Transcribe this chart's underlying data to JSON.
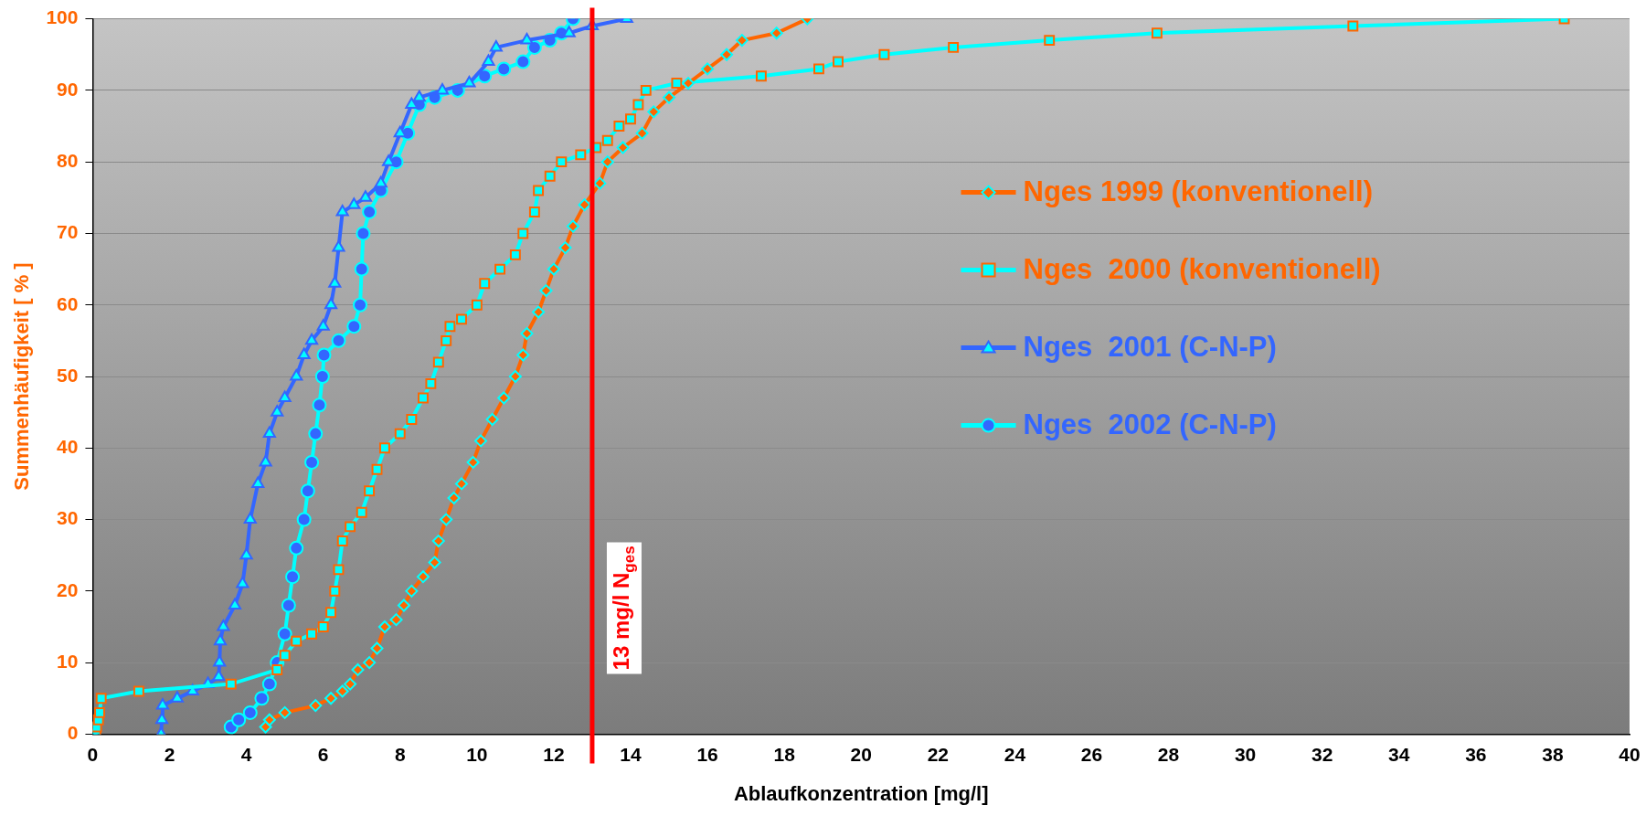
{
  "chart_data": {
    "type": "line",
    "xlabel": "Ablaufkonzentration [mg/l]",
    "ylabel": "Summenhäufigkeit [ % ]",
    "xlim": [
      0,
      40
    ],
    "xticks": [
      0,
      2,
      4,
      6,
      8,
      10,
      12,
      14,
      16,
      18,
      20,
      22,
      24,
      26,
      28,
      30,
      32,
      34,
      36,
      38,
      40
    ],
    "ylim": [
      0,
      100
    ],
    "yticks": [
      0,
      10,
      20,
      30,
      40,
      50,
      60,
      70,
      80,
      90,
      100
    ],
    "grid": "y",
    "legend": "right",
    "line_style": "solid",
    "ref_lines": [
      {
        "axis": "x",
        "value": 13,
        "label": "13 mg/l N$_{ges}$",
        "color": "#ff0000"
      }
    ],
    "series": [
      {
        "name": "Nges 1999 (konventionell)",
        "color": "#ff6600",
        "marker": "diamond",
        "x": [
          4.5,
          4.6,
          5.0,
          5.8,
          6.2,
          6.5,
          6.7,
          6.9,
          7.2,
          7.4,
          7.6,
          7.9,
          8.1,
          8.3,
          8.6,
          8.9,
          9.0,
          9.2,
          9.4,
          9.6,
          9.9,
          10.1,
          10.4,
          10.7,
          11.0,
          11.2,
          11.3,
          11.6,
          11.8,
          12.0,
          12.3,
          12.5,
          12.8,
          13.2,
          13.4,
          13.8,
          14.3,
          14.6,
          15.0,
          15.5,
          16.0,
          16.5,
          16.9,
          17.8,
          18.6
        ],
        "values": [
          1,
          2,
          3,
          4,
          5,
          6,
          7,
          9,
          10,
          12,
          15,
          16,
          18,
          20,
          22,
          24,
          27,
          30,
          33,
          35,
          38,
          41,
          44,
          47,
          50,
          53,
          56,
          59,
          62,
          65,
          68,
          71,
          74,
          77,
          80,
          82,
          84,
          87,
          89,
          91,
          93,
          95,
          97,
          98,
          100
        ]
      },
      {
        "name": "Nges  2000 (konventionell)",
        "color": "#00ffff",
        "marker": "square",
        "x": [
          0.08,
          0.1,
          0.15,
          0.18,
          0.22,
          1.2,
          3.6,
          4.8,
          5.0,
          5.3,
          5.7,
          6.0,
          6.2,
          6.3,
          6.4,
          6.5,
          6.7,
          7.0,
          7.2,
          7.4,
          7.6,
          8.0,
          8.3,
          8.6,
          8.8,
          9.0,
          9.2,
          9.3,
          9.6,
          10.0,
          10.2,
          10.6,
          11.0,
          11.2,
          11.5,
          11.6,
          11.9,
          12.2,
          12.7,
          13.1,
          13.4,
          13.7,
          14.0,
          14.2,
          14.4,
          15.2,
          17.4,
          18.9,
          19.4,
          20.6,
          22.4,
          24.9,
          27.7,
          32.8,
          38.3
        ],
        "values": [
          0,
          1,
          2,
          3,
          5,
          6,
          7,
          9,
          11,
          13,
          14,
          15,
          17,
          20,
          23,
          27,
          29,
          31,
          34,
          37,
          40,
          42,
          44,
          47,
          49,
          52,
          55,
          57,
          58,
          60,
          63,
          65,
          67,
          70,
          73,
          76,
          78,
          80,
          81,
          82,
          83,
          85,
          86,
          88,
          90,
          91,
          92,
          93,
          94,
          95,
          96,
          97,
          98,
          99,
          100
        ]
      },
      {
        "name": "Nges  2001 (C-N-P)",
        "color": "#3366ff",
        "marker": "triangle",
        "x": [
          1.78,
          1.8,
          1.82,
          2.2,
          2.6,
          3.0,
          3.28,
          3.3,
          3.32,
          3.4,
          3.7,
          3.9,
          4.0,
          4.1,
          4.3,
          4.5,
          4.6,
          4.8,
          5.0,
          5.3,
          5.5,
          5.7,
          6.0,
          6.2,
          6.3,
          6.4,
          6.5,
          6.8,
          7.1,
          7.5,
          7.7,
          8.0,
          8.3,
          8.5,
          9.1,
          9.8,
          10.3,
          10.5,
          11.3,
          12.4,
          13.0,
          13.9
        ],
        "values": [
          0,
          2,
          4,
          5,
          6,
          7,
          8,
          10,
          13,
          15,
          18,
          21,
          25,
          30,
          35,
          38,
          42,
          45,
          47,
          50,
          53,
          55,
          57,
          60,
          63,
          68,
          73,
          74,
          75,
          77,
          80,
          84,
          88,
          89,
          90,
          91,
          94,
          96,
          97,
          98,
          99,
          100
        ]
      },
      {
        "name": "Nges  2002 (C-N-P)",
        "color": "#00ffff",
        "marker": "circle",
        "x": [
          3.6,
          3.8,
          4.1,
          4.4,
          4.6,
          4.8,
          5.0,
          5.1,
          5.2,
          5.3,
          5.5,
          5.6,
          5.7,
          5.8,
          5.9,
          5.98,
          6.02,
          6.4,
          6.8,
          6.96,
          7.0,
          7.04,
          7.2,
          7.5,
          7.9,
          8.2,
          8.5,
          8.9,
          9.5,
          10.2,
          10.7,
          11.2,
          11.5,
          11.9,
          12.2,
          12.5
        ],
        "values": [
          1,
          2,
          3,
          5,
          7,
          10,
          14,
          18,
          22,
          26,
          30,
          34,
          38,
          42,
          46,
          50,
          53,
          55,
          57,
          60,
          65,
          70,
          73,
          76,
          80,
          84,
          88,
          89,
          90,
          92,
          93,
          94,
          96,
          97,
          98,
          100
        ]
      }
    ]
  }
}
